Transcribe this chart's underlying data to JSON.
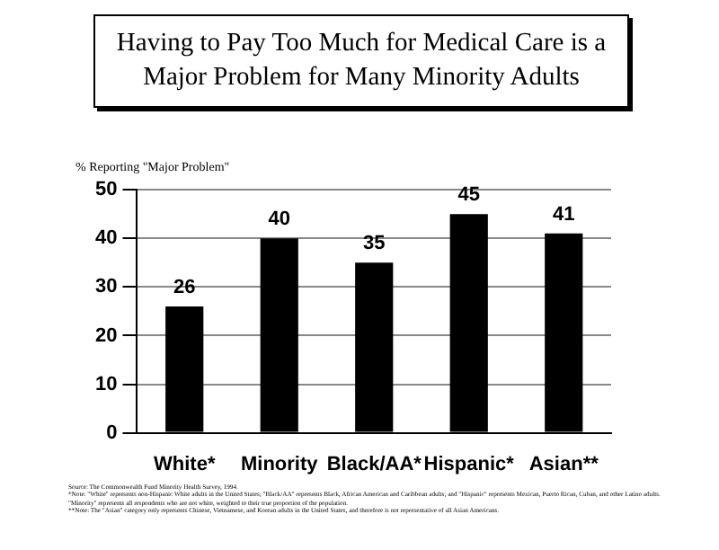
{
  "chart_data": {
    "type": "bar",
    "title": "Having to Pay Too Much for Medical Care is a Major Problem for Many Minority Adults",
    "ylabel": "% Reporting \"Major Problem\"",
    "categories": [
      "White*",
      "Minority",
      "Black/AA*",
      "Hispanic*",
      "Asian**"
    ],
    "values": [
      26,
      40,
      35,
      45,
      41
    ],
    "color": "#000000",
    "ylim": [
      0,
      50
    ],
    "yticks": [
      0,
      10,
      20,
      30,
      40,
      50
    ],
    "grid": "y",
    "data_labels": true,
    "annotations": [
      "Source: The Commonwealth Fund Minority Health Survey, 1994.",
      "*Note: \"White\" represents non-Hispanic White adults in the United States; \"Black/AA\" represents Black, African American and Caribbean adults; and \"Hispanic\" represents Mexican, Puerto Rican, Cuban, and other Latino adults. \"Minority\" represents all respondents who are not white, weighted to their true proportion of the population.",
      "**Note: The \"Asian\" category only represents Chinese, Vietnamese, and Korean adults in the United States, and therefore is not representative of all Asian Americans."
    ]
  }
}
